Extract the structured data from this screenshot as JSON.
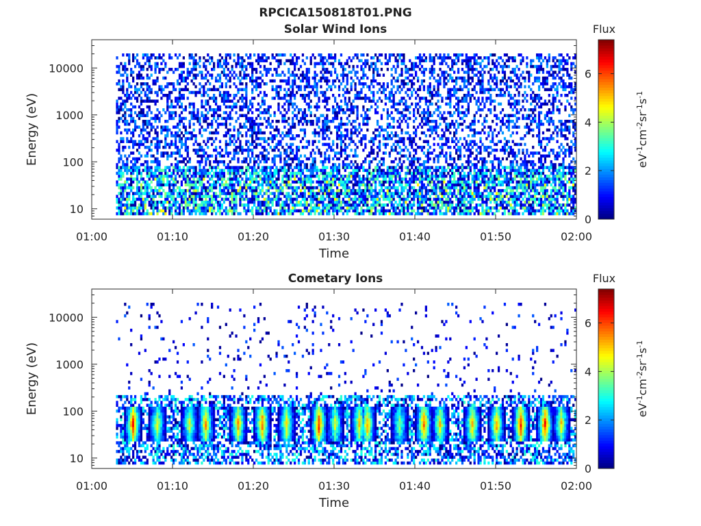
{
  "figure_title": "RPCICA150818T01.PNG",
  "colorbar": {
    "title": "Flux",
    "label": "eV-1cm-2sr-1s-1",
    "label_parts": [
      [
        "eV",
        false
      ],
      [
        "-1",
        true
      ],
      [
        "cm",
        false
      ],
      [
        "-2",
        true
      ],
      [
        "sr",
        false
      ],
      [
        "-1",
        true
      ],
      [
        "s",
        false
      ],
      [
        "-1",
        true
      ]
    ],
    "range": [
      0,
      7.4
    ],
    "ticks": [
      "0",
      "2",
      "4",
      "6"
    ],
    "tick_values": [
      0,
      2,
      4,
      6
    ],
    "colormap": "jet"
  },
  "chart_data": [
    {
      "type": "heatmap",
      "title": "Solar Wind Ions",
      "xlabel": "Time",
      "ylabel": "Energy (eV)",
      "x_range": [
        "01:00",
        "02:00"
      ],
      "x_ticks": [
        "01:00",
        "01:10",
        "01:20",
        "01:30",
        "01:40",
        "01:50",
        "02:00"
      ],
      "y_scale": "log",
      "y_range": [
        6,
        40000
      ],
      "y_ticks": [
        "10",
        "100",
        "1000",
        "10000"
      ],
      "y_tick_values": [
        10,
        100,
        1000,
        10000
      ],
      "data_start": "01:03",
      "value_range": [
        0,
        7.4
      ],
      "description_hint": "sparse low-flux (0-3) speckle across all energies; denser 2-4 values below ~100 eV"
    },
    {
      "type": "heatmap",
      "title": "Cometary Ions",
      "xlabel": "Time",
      "ylabel": "Energy (eV)",
      "x_range": [
        "01:00",
        "02:00"
      ],
      "x_ticks": [
        "01:00",
        "01:10",
        "01:20",
        "01:30",
        "01:40",
        "01:50",
        "02:00"
      ],
      "y_scale": "log",
      "y_range": [
        6,
        40000
      ],
      "y_ticks": [
        "10",
        "100",
        "1000",
        "10000"
      ],
      "y_tick_values": [
        10,
        100,
        1000,
        10000
      ],
      "data_start": "01:03",
      "value_range": [
        0,
        7.4
      ],
      "burst_times": [
        "01:05",
        "01:08",
        "01:12",
        "01:14",
        "01:18",
        "01:21",
        "01:24",
        "01:28",
        "01:30",
        "01:33",
        "01:34",
        "01:38",
        "01:41",
        "01:43",
        "01:47",
        "01:50",
        "01:53",
        "01:56",
        "01:58"
      ],
      "burst_energy_eV": [
        15,
        60
      ],
      "burst_peak_flux": [
        6.5,
        4.5,
        4.5,
        5.5,
        5.5,
        6,
        5,
        6.5,
        4.5,
        5,
        5.5,
        4,
        6,
        5,
        5.5,
        5.5,
        6.5,
        6.5,
        5
      ]
    }
  ]
}
